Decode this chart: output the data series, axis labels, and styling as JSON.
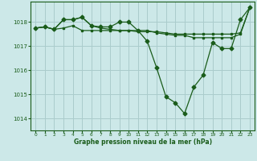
{
  "background_color": "#cce8e8",
  "plot_background": "#cce8e8",
  "grid_color": "#aacccc",
  "line_color": "#1a5c1a",
  "xlabel": "Graphe pression niveau de la mer (hPa)",
  "ylim": [
    1013.5,
    1018.85
  ],
  "xlim": [
    -0.5,
    23.5
  ],
  "yticks": [
    1014,
    1015,
    1016,
    1017,
    1018
  ],
  "xticks": [
    0,
    1,
    2,
    3,
    4,
    5,
    6,
    7,
    8,
    9,
    10,
    11,
    12,
    13,
    14,
    15,
    16,
    17,
    18,
    19,
    20,
    21,
    22,
    23
  ],
  "series1_x": [
    0,
    1,
    2,
    3,
    4,
    5,
    6,
    7,
    8,
    9,
    10,
    11,
    12,
    13,
    14,
    15,
    16,
    17,
    18,
    19,
    20,
    21,
    22,
    23
  ],
  "series1_y": [
    1017.75,
    1017.8,
    1017.7,
    1018.1,
    1018.1,
    1018.2,
    1017.85,
    1017.75,
    1017.7,
    1017.65,
    1017.65,
    1017.6,
    1017.6,
    1017.6,
    1017.55,
    1017.5,
    1017.5,
    1017.5,
    1017.5,
    1017.5,
    1017.5,
    1017.5,
    1017.55,
    1018.6
  ],
  "series2_x": [
    0,
    1,
    2,
    3,
    4,
    5,
    6,
    7,
    8,
    9,
    10,
    11,
    12,
    13,
    14,
    15,
    16,
    17,
    18,
    19,
    20,
    21,
    22,
    23
  ],
  "series2_y": [
    1017.75,
    1017.8,
    1017.7,
    1018.1,
    1018.1,
    1018.2,
    1017.85,
    1017.8,
    1017.8,
    1018.0,
    1018.0,
    1017.65,
    1017.2,
    1016.1,
    1014.9,
    1014.65,
    1014.2,
    1015.3,
    1015.8,
    1017.15,
    1016.9,
    1016.9,
    1018.1,
    1018.6
  ],
  "series3_x": [
    0,
    1,
    2,
    3,
    4,
    5,
    6,
    7,
    8,
    9,
    10,
    11,
    12,
    13,
    14,
    15,
    16,
    17,
    18,
    19,
    20,
    21,
    22,
    23
  ],
  "series3_y": [
    1017.75,
    1017.8,
    1017.7,
    1017.75,
    1017.85,
    1017.65,
    1017.65,
    1017.65,
    1017.65,
    1017.65,
    1017.65,
    1017.65,
    1017.65,
    1017.55,
    1017.5,
    1017.45,
    1017.45,
    1017.35,
    1017.35,
    1017.35,
    1017.35,
    1017.35,
    1017.5,
    1018.6
  ]
}
